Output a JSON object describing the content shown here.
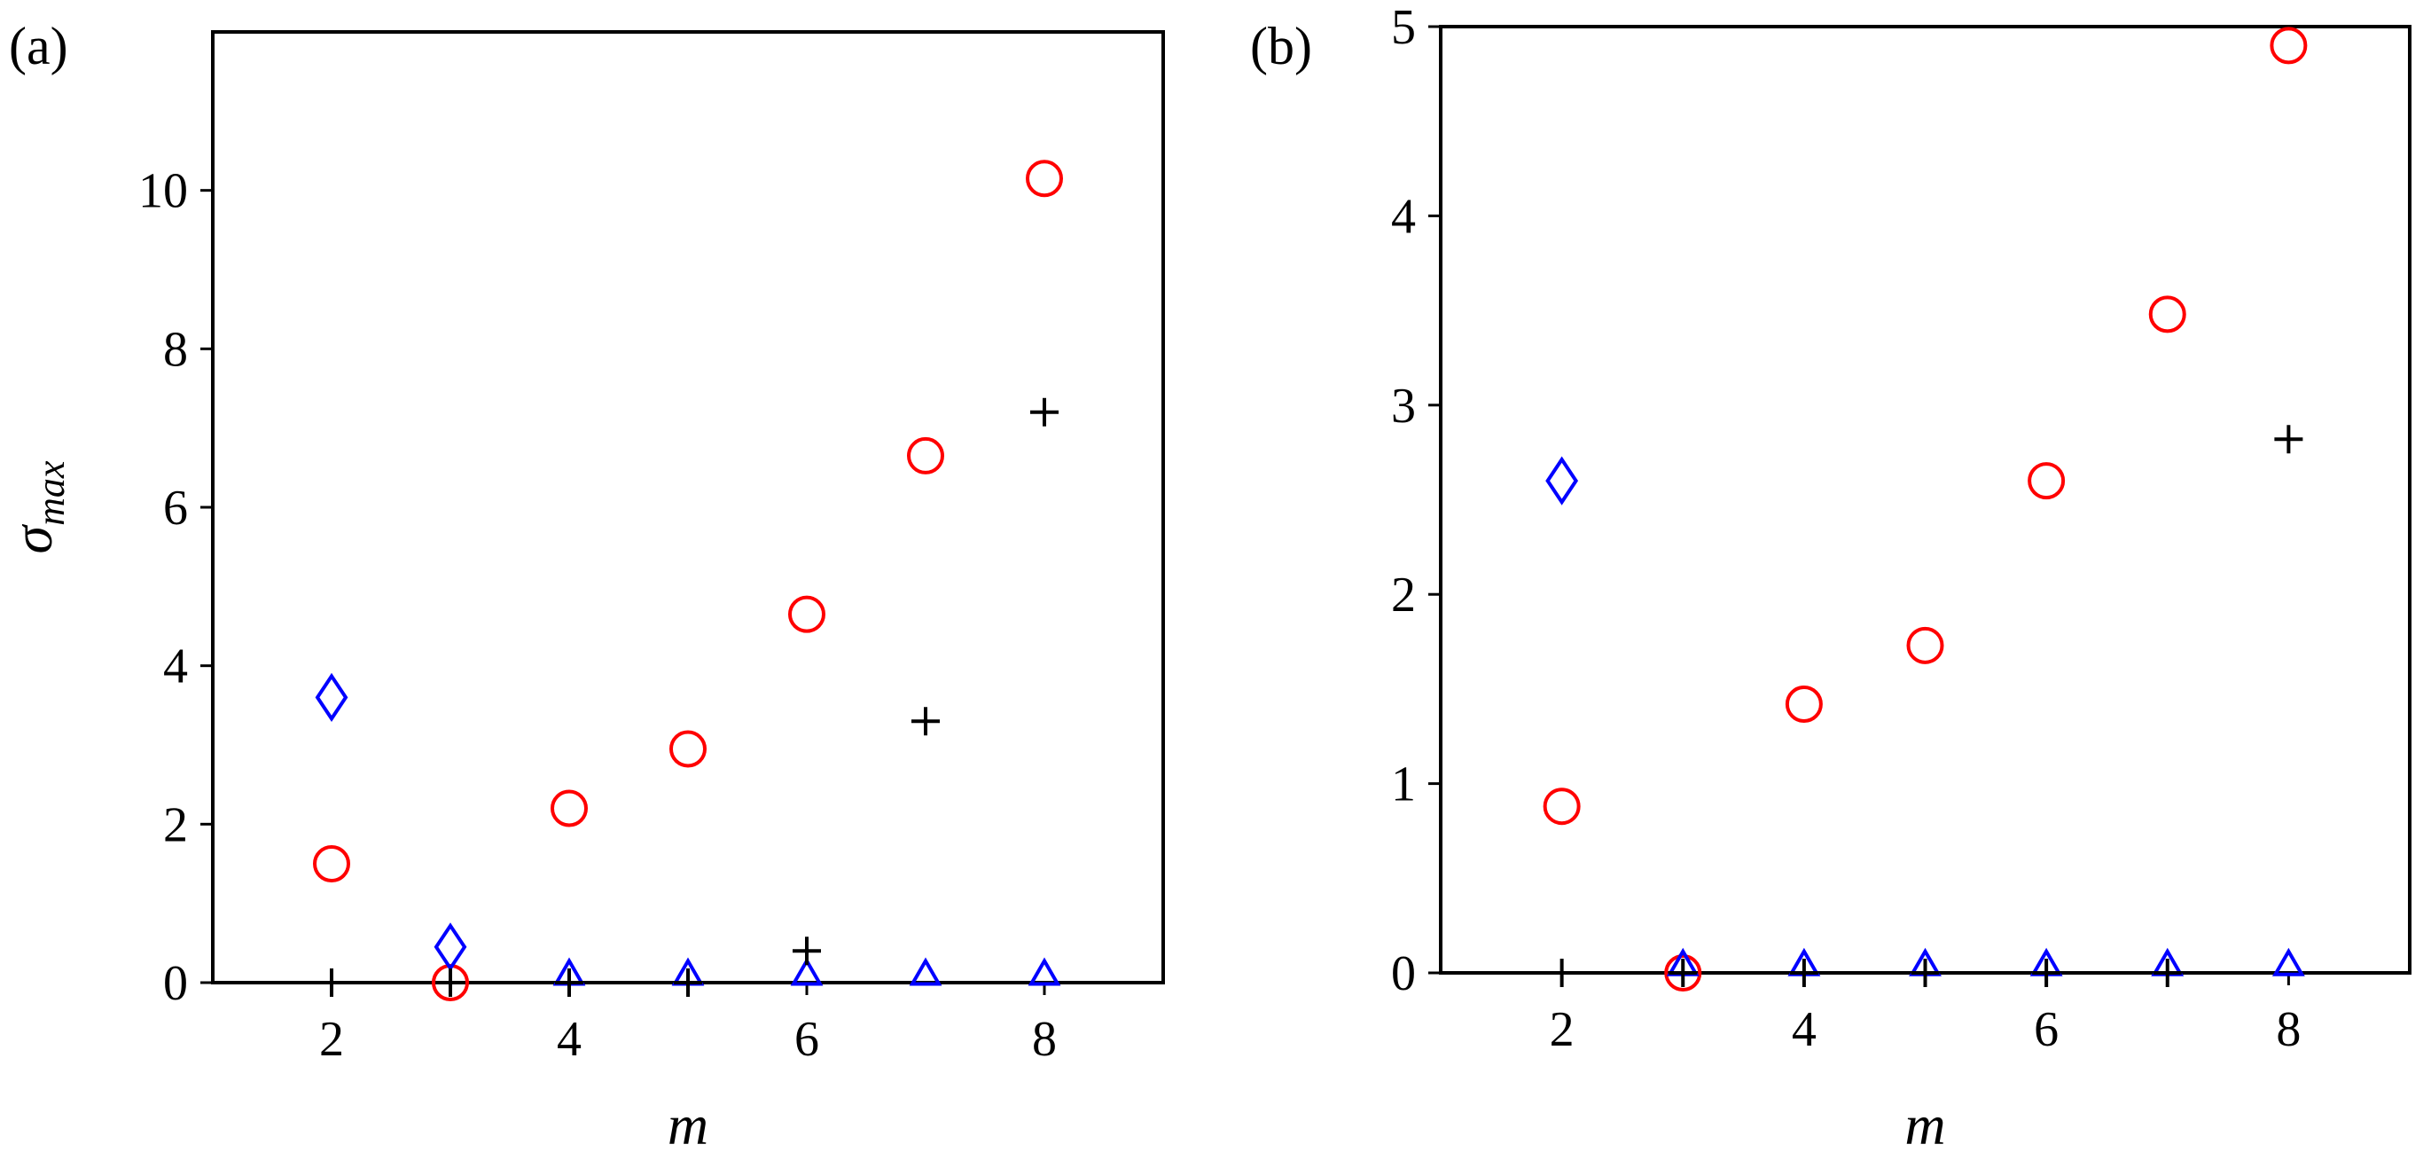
{
  "chart_data": [
    {
      "panel_label": "(a)",
      "type": "scatter",
      "xlabel": "m",
      "ylabel_symbol": "σ",
      "ylabel_subscript": "max",
      "xlim": [
        1,
        9
      ],
      "ylim": [
        0,
        12
      ],
      "xticks": [
        2,
        4,
        6,
        8
      ],
      "yticks": [
        0,
        2,
        4,
        6,
        8,
        10
      ],
      "grid": false,
      "series": [
        {
          "marker": "circle",
          "color": "#ff0000",
          "x": [
            2,
            3,
            4,
            5,
            6,
            7,
            8
          ],
          "y": [
            1.5,
            0.0,
            2.2,
            2.95,
            4.65,
            6.65,
            10.15
          ]
        },
        {
          "marker": "diamond",
          "color": "#0000ff",
          "x": [
            2,
            3
          ],
          "y": [
            3.6,
            0.45
          ]
        },
        {
          "marker": "triangle",
          "color": "#0000ff",
          "x": [
            4,
            5,
            6,
            7,
            8
          ],
          "y": [
            0.05,
            0.05,
            0.05,
            0.05,
            0.05
          ]
        },
        {
          "marker": "plus",
          "color": "#000000",
          "x": [
            2,
            3,
            4,
            5,
            6,
            7,
            8
          ],
          "y": [
            0.0,
            0.0,
            0.0,
            0.0,
            0.4,
            3.3,
            7.2
          ]
        }
      ]
    },
    {
      "panel_label": "(b)",
      "type": "scatter",
      "xlabel": "m",
      "ylabel_symbol": "",
      "ylabel_subscript": "",
      "xlim": [
        1,
        9
      ],
      "ylim": [
        0,
        5
      ],
      "xticks": [
        2,
        4,
        6,
        8
      ],
      "yticks": [
        0,
        1,
        2,
        3,
        4,
        5
      ],
      "grid": false,
      "series": [
        {
          "marker": "circle",
          "color": "#ff0000",
          "x": [
            2,
            3,
            4,
            5,
            6,
            7,
            8
          ],
          "y": [
            0.88,
            0.0,
            1.42,
            1.73,
            2.6,
            3.48,
            4.9
          ]
        },
        {
          "marker": "diamond",
          "color": "#0000ff",
          "x": [
            2
          ],
          "y": [
            2.6
          ]
        },
        {
          "marker": "triangle",
          "color": "#0000ff",
          "x": [
            3,
            4,
            5,
            6,
            7,
            8
          ],
          "y": [
            0.02,
            0.02,
            0.02,
            0.02,
            0.02,
            0.02
          ]
        },
        {
          "marker": "plus",
          "color": "#000000",
          "x": [
            2,
            3,
            4,
            5,
            6,
            7,
            8
          ],
          "y": [
            0.0,
            0.0,
            0.0,
            0.0,
            0.0,
            0.0,
            2.82
          ]
        }
      ]
    }
  ]
}
